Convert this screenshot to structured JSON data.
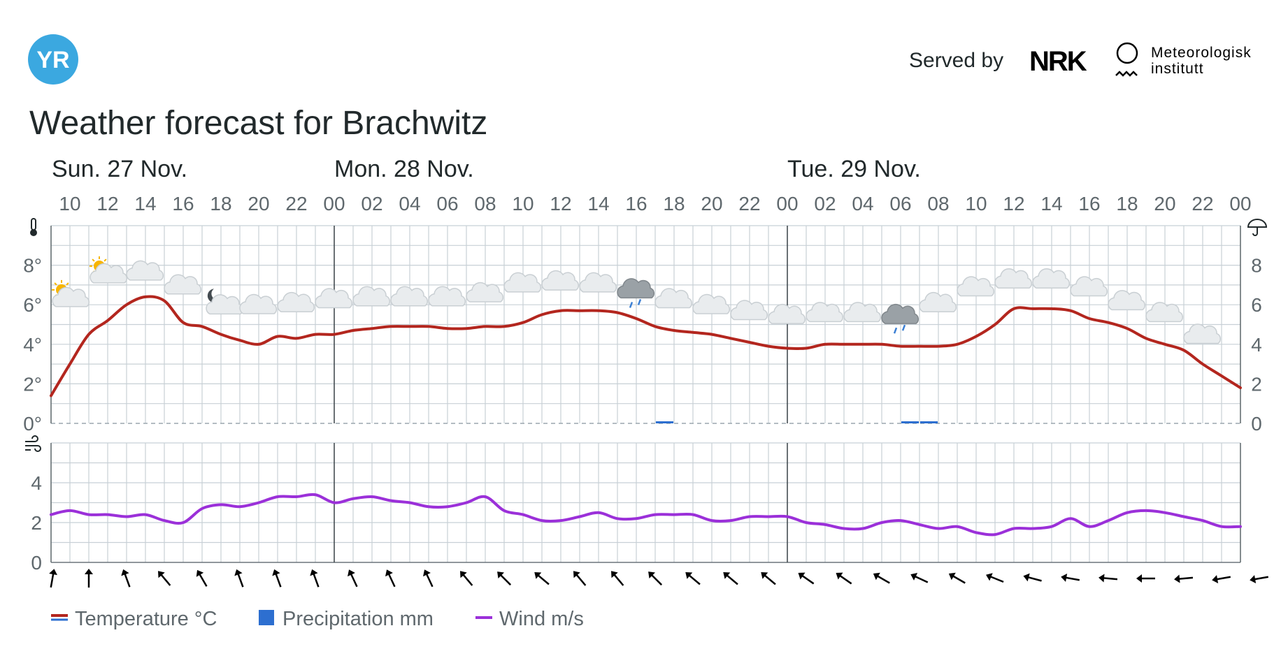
{
  "header": {
    "logo_text": "YR",
    "served_by": "Served by",
    "nrk_logo_text": "NRK",
    "met_line1": "Meteorologisk",
    "met_line2": "institutt"
  },
  "title": "Weather forecast for Brachwitz",
  "colors": {
    "yr_blue": "#3ba8e0",
    "temperature": "#b3261e",
    "precipitation": "#2d6fd0",
    "wind": "#9b30d9",
    "grid": "#c8d0d6",
    "text": "#21292b"
  },
  "chart_data": {
    "type": "line",
    "days": [
      {
        "label": "Sun. 27 Nov.",
        "start_hour_index": 0
      },
      {
        "label": "Mon. 28 Nov.",
        "start_hour_index": 15
      },
      {
        "label": "Tue. 29 Nov.",
        "start_hour_index": 39
      }
    ],
    "hours": [
      "09",
      "10",
      "11",
      "12",
      "13",
      "14",
      "15",
      "16",
      "17",
      "18",
      "19",
      "20",
      "21",
      "22",
      "23",
      "00",
      "01",
      "02",
      "03",
      "04",
      "05",
      "06",
      "07",
      "08",
      "09",
      "10",
      "11",
      "12",
      "13",
      "14",
      "15",
      "16",
      "17",
      "18",
      "19",
      "20",
      "21",
      "22",
      "23",
      "00",
      "01",
      "02",
      "03",
      "04",
      "05",
      "06",
      "07",
      "08",
      "09",
      "10",
      "11",
      "12",
      "13",
      "14",
      "15",
      "16",
      "17",
      "18",
      "19",
      "20",
      "21",
      "22",
      "23",
      "00"
    ],
    "hour_label_step": 2,
    "temperature": {
      "name": "Temperature °C",
      "axis_ticks": [
        "0°",
        "2°",
        "4°",
        "6°",
        "8°"
      ],
      "right_axis_ticks": [
        "0",
        "2",
        "4",
        "6",
        "8"
      ],
      "ylim": [
        0,
        10
      ],
      "values": [
        1.4,
        3.0,
        4.5,
        5.2,
        6.0,
        6.4,
        6.2,
        5.1,
        4.9,
        4.5,
        4.2,
        4.0,
        4.4,
        4.3,
        4.5,
        4.5,
        4.7,
        4.8,
        4.9,
        4.9,
        4.9,
        4.8,
        4.8,
        4.9,
        4.9,
        5.1,
        5.5,
        5.7,
        5.7,
        5.7,
        5.6,
        5.3,
        4.9,
        4.7,
        4.6,
        4.5,
        4.3,
        4.1,
        3.9,
        3.8,
        3.8,
        4.0,
        4.0,
        4.0,
        4.0,
        3.9,
        3.9,
        3.9,
        4.0,
        4.4,
        5.0,
        5.8,
        5.8,
        5.8,
        5.7,
        5.3,
        5.1,
        4.8,
        4.3,
        4.0,
        3.7,
        3.0,
        2.4,
        1.8
      ]
    },
    "precipitation": {
      "name": "Precipitation mm",
      "values": [
        0,
        0,
        0,
        0,
        0,
        0,
        0,
        0,
        0,
        0,
        0,
        0,
        0,
        0,
        0,
        0,
        0,
        0,
        0,
        0,
        0,
        0,
        0,
        0,
        0,
        0,
        0,
        0,
        0,
        0,
        0,
        0,
        0.1,
        0,
        0,
        0,
        0,
        0,
        0,
        0,
        0,
        0,
        0,
        0,
        0,
        0.1,
        0.1,
        0,
        0,
        0,
        0,
        0,
        0,
        0,
        0,
        0,
        0,
        0,
        0,
        0,
        0,
        0,
        0,
        0
      ]
    },
    "wind": {
      "name": "Wind m/s",
      "axis_ticks": [
        "0",
        "2",
        "4"
      ],
      "ylim": [
        0,
        6
      ],
      "values": [
        2.4,
        2.6,
        2.4,
        2.4,
        2.3,
        2.4,
        2.1,
        2.0,
        2.7,
        2.9,
        2.8,
        3.0,
        3.3,
        3.3,
        3.4,
        3.0,
        3.2,
        3.3,
        3.1,
        3.0,
        2.8,
        2.8,
        3.0,
        3.3,
        2.6,
        2.4,
        2.1,
        2.1,
        2.3,
        2.5,
        2.2,
        2.2,
        2.4,
        2.4,
        2.4,
        2.1,
        2.1,
        2.3,
        2.3,
        2.3,
        2.0,
        1.9,
        1.7,
        1.7,
        2.0,
        2.1,
        1.9,
        1.7,
        1.8,
        1.5,
        1.4,
        1.7,
        1.7,
        1.8,
        2.2,
        1.8,
        2.1,
        2.5,
        2.6,
        2.5,
        2.3,
        2.1,
        1.8,
        1.8
      ],
      "arrow_directions_deg": [
        10,
        0,
        -20,
        -40,
        -30,
        -20,
        -20,
        -20,
        -25,
        -25,
        -25,
        -40,
        -45,
        -50,
        -40,
        -40,
        -45,
        -50,
        -50,
        -50,
        -55,
        -55,
        -60,
        -65,
        -60,
        -68,
        -75,
        -80,
        -85,
        -90,
        -95,
        -100,
        -100,
        -105,
        -105,
        -110
      ]
    },
    "symbols": [
      {
        "hour_index": 1,
        "temp": 6.4,
        "icon": "partly-sunny-icon"
      },
      {
        "hour_index": 3,
        "temp": 7.6,
        "icon": "partly-sunny-icon"
      },
      {
        "hour_index": 5,
        "temp": 7.6,
        "icon": "cloud-icon"
      },
      {
        "hour_index": 7,
        "temp": 6.9,
        "icon": "cloud-icon"
      },
      {
        "hour_index": 9,
        "temp": 6.1,
        "icon": "partly-moon-icon"
      },
      {
        "hour_index": 11,
        "temp": 5.9,
        "icon": "cloud-icon"
      },
      {
        "hour_index": 13,
        "temp": 6.0,
        "icon": "cloud-icon"
      },
      {
        "hour_index": 15,
        "temp": 6.2,
        "icon": "cloud-icon"
      },
      {
        "hour_index": 17,
        "temp": 6.3,
        "icon": "cloud-icon"
      },
      {
        "hour_index": 19,
        "temp": 6.3,
        "icon": "cloud-icon"
      },
      {
        "hour_index": 21,
        "temp": 6.3,
        "icon": "cloud-icon"
      },
      {
        "hour_index": 23,
        "temp": 6.5,
        "icon": "cloud-icon"
      },
      {
        "hour_index": 25,
        "temp": 7.0,
        "icon": "cloud-icon"
      },
      {
        "hour_index": 27,
        "temp": 7.1,
        "icon": "cloud-icon"
      },
      {
        "hour_index": 29,
        "temp": 7.0,
        "icon": "cloud-icon"
      },
      {
        "hour_index": 31,
        "temp": 6.7,
        "icon": "rain-cloud-icon"
      },
      {
        "hour_index": 33,
        "temp": 6.2,
        "icon": "cloud-icon"
      },
      {
        "hour_index": 35,
        "temp": 5.9,
        "icon": "cloud-icon"
      },
      {
        "hour_index": 37,
        "temp": 5.6,
        "icon": "cloud-icon"
      },
      {
        "hour_index": 39,
        "temp": 5.4,
        "icon": "cloud-icon"
      },
      {
        "hour_index": 41,
        "temp": 5.5,
        "icon": "cloud-icon"
      },
      {
        "hour_index": 43,
        "temp": 5.5,
        "icon": "cloud-icon"
      },
      {
        "hour_index": 45,
        "temp": 5.4,
        "icon": "rain-cloud-icon"
      },
      {
        "hour_index": 47,
        "temp": 6.0,
        "icon": "cloud-icon"
      },
      {
        "hour_index": 49,
        "temp": 6.8,
        "icon": "cloud-icon"
      },
      {
        "hour_index": 51,
        "temp": 7.2,
        "icon": "cloud-icon"
      },
      {
        "hour_index": 53,
        "temp": 7.2,
        "icon": "cloud-icon"
      },
      {
        "hour_index": 55,
        "temp": 6.8,
        "icon": "cloud-icon"
      },
      {
        "hour_index": 57,
        "temp": 6.1,
        "icon": "cloud-icon"
      },
      {
        "hour_index": 59,
        "temp": 5.5,
        "icon": "cloud-icon"
      },
      {
        "hour_index": 61,
        "temp": 4.4,
        "icon": "cloud-icon"
      }
    ],
    "axis_icons": {
      "temperature": "thermometer-icon",
      "precipitation": "umbrella-icon",
      "wind": "wind-icon"
    },
    "legend": [
      {
        "label": "Temperature °C",
        "key": "temperature"
      },
      {
        "label": "Precipitation mm",
        "key": "precipitation"
      },
      {
        "label": "Wind m/s",
        "key": "wind"
      }
    ],
    "grid": true
  }
}
